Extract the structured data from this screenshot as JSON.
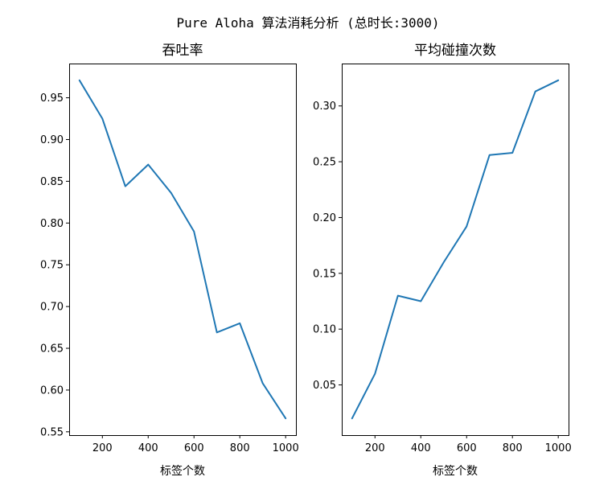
{
  "suptitle": "Pure Aloha 算法消耗分析 (总时长:3000)",
  "chart_data": [
    {
      "type": "line",
      "title": "吞吐率",
      "xlabel": "标签个数",
      "ylabel": "",
      "x": [
        100,
        200,
        300,
        400,
        500,
        600,
        700,
        800,
        900,
        1000
      ],
      "series": [
        {
          "values": [
            0.971,
            0.925,
            0.844,
            0.87,
            0.836,
            0.79,
            0.669,
            0.68,
            0.608,
            0.566
          ]
        }
      ],
      "xlim": [
        55,
        1045
      ],
      "ylim": [
        0.546,
        0.991
      ],
      "xticks": [
        200,
        400,
        600,
        800,
        1000
      ],
      "yticks": [
        0.55,
        0.6,
        0.65,
        0.7,
        0.75,
        0.8,
        0.85,
        0.9,
        0.95
      ],
      "ytick_decimals": 2,
      "grid": false,
      "color": "#1f77b4"
    },
    {
      "type": "line",
      "title": "平均碰撞次数",
      "xlabel": "标签个数",
      "ylabel": "",
      "x": [
        100,
        200,
        300,
        400,
        500,
        600,
        700,
        800,
        900,
        1000
      ],
      "series": [
        {
          "values": [
            0.02,
            0.06,
            0.13,
            0.125,
            0.16,
            0.192,
            0.256,
            0.258,
            0.313,
            0.323
          ]
        }
      ],
      "xlim": [
        55,
        1045
      ],
      "ylim": [
        0.005,
        0.338
      ],
      "xticks": [
        200,
        400,
        600,
        800,
        1000
      ],
      "yticks": [
        0.05,
        0.1,
        0.15,
        0.2,
        0.25,
        0.3
      ],
      "ytick_decimals": 2,
      "grid": false,
      "color": "#1f77b4"
    }
  ]
}
